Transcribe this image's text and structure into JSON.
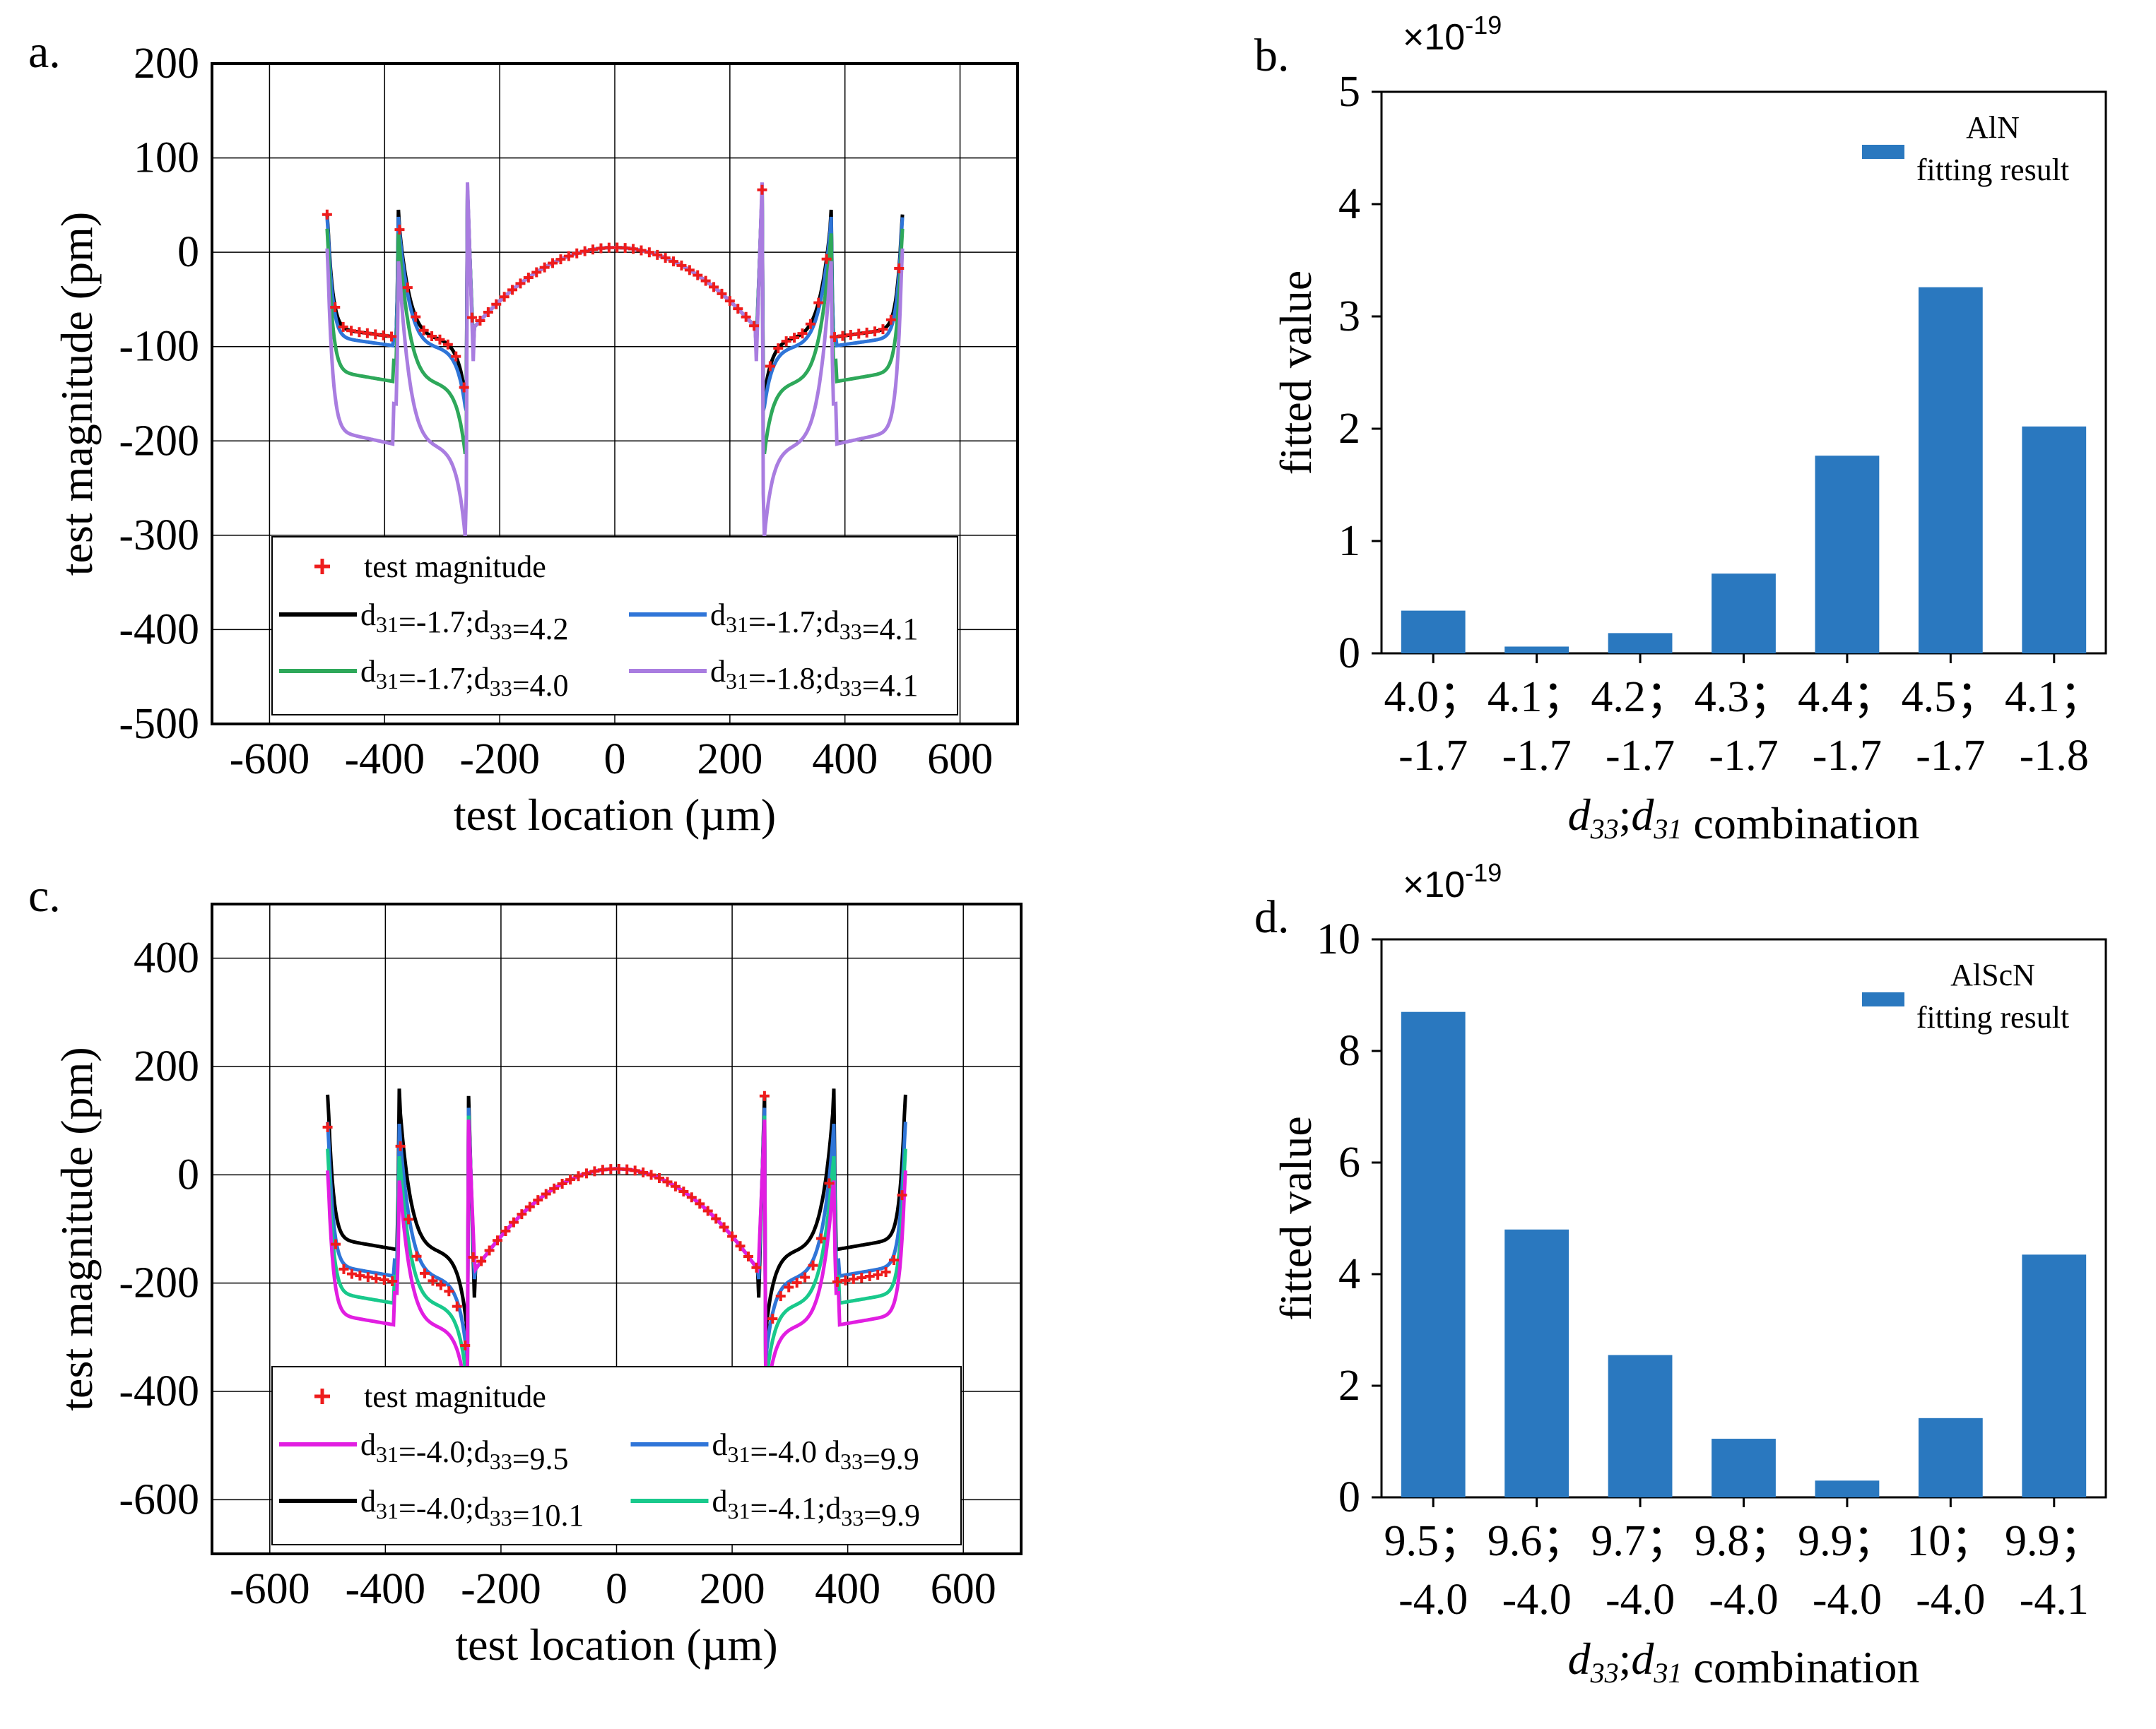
{
  "figure": {
    "panels": {
      "a": {
        "label": "a."
      },
      "b": {
        "label": "b."
      },
      "c": {
        "label": "c."
      },
      "d": {
        "label": "d."
      }
    }
  },
  "chart_data": [
    {
      "id": "a",
      "type": "line",
      "title": "",
      "xlabel": "test location (µm)",
      "ylabel": "test magnitude (pm)",
      "xlim": [
        -700,
        700
      ],
      "ylim": [
        -500,
        200
      ],
      "xticks": [
        -600,
        -400,
        -200,
        0,
        200,
        400,
        600
      ],
      "yticks": [
        200,
        100,
        0,
        -100,
        -200,
        -300,
        -400,
        -500
      ],
      "grid": true,
      "legend_position": "bottom-center",
      "legend": [
        {
          "name": "test magnitude",
          "marker": "+",
          "color": "#ee1c1c"
        },
        {
          "name": "d31=-1.7;d33=4.2",
          "color": "#000000"
        },
        {
          "name": "d31=-1.7;d33=4.1",
          "color": "#2f75d8"
        },
        {
          "name": "d31=-1.7;d33=4.0",
          "color": "#2ea85a"
        },
        {
          "name": "d31=-1.8;d33=4.1",
          "color": "#a97de0"
        }
      ],
      "series": [
        {
          "name": "d31=-1.7;d33=4.2",
          "color": "#000000",
          "offset": 0,
          "scale": 1.0,
          "tipScale": 1.0
        },
        {
          "name": "d31=-1.7;d33=4.1",
          "color": "#2f75d8",
          "offset": -5,
          "scale": 1.05,
          "tipScale": 0.9
        },
        {
          "name": "d31=-1.7;d33=4.0",
          "color": "#2ea85a",
          "offset": -25,
          "scale": 1.25,
          "tipScale": 0.8
        },
        {
          "name": "d31=-1.8;d33=4.1",
          "color": "#a97de0",
          "offset": -60,
          "scale": 1.6,
          "tipScale": 0.7
        }
      ],
      "test_points": {
        "name": "test magnitude",
        "color": "#ee1c1c"
      }
    },
    {
      "id": "b",
      "type": "bar",
      "title": "",
      "multiplier": "×10-19",
      "xlabel": "d33;d31 combination",
      "ylabel": "fitted value",
      "ylim": [
        0,
        5
      ],
      "yticks": [
        0,
        1,
        2,
        3,
        4,
        5
      ],
      "legend_position": "top-right",
      "legend": [
        {
          "name": "AlN",
          "sub": "fitting result",
          "color": "#2a78bf"
        }
      ],
      "categories": [
        [
          "4.0；",
          "-1.7"
        ],
        [
          "4.1；",
          "-1.7"
        ],
        [
          "4.2；",
          "-1.7"
        ],
        [
          "4.3；",
          "-1.7"
        ],
        [
          "4.4；",
          "-1.7"
        ],
        [
          "4.5；",
          "-1.7"
        ],
        [
          "4.1；",
          "-1.8"
        ]
      ],
      "values": [
        0.38,
        0.06,
        0.18,
        0.71,
        1.76,
        3.26,
        2.02
      ],
      "color": "#2a78bf"
    },
    {
      "id": "c",
      "type": "line",
      "title": "",
      "xlabel": "test location (µm)",
      "ylabel": "test magnitude (pm)",
      "xlim": [
        -700,
        700
      ],
      "ylim": [
        -700,
        500
      ],
      "xticks": [
        -600,
        -400,
        -200,
        0,
        200,
        400,
        600
      ],
      "yticks": [
        400,
        200,
        0,
        -200,
        -400,
        -600
      ],
      "grid": true,
      "legend_position": "bottom-center",
      "legend": [
        {
          "name": "test magnitude",
          "marker": "+",
          "color": "#ee1c1c"
        },
        {
          "name": "d31=-4.0;d33=9.5",
          "color": "#e11ee1"
        },
        {
          "name": "d31=-4.0 d33=9.9",
          "color": "#2f75d8"
        },
        {
          "name": "d31=-4.0;d33=10.1",
          "color": "#000000"
        },
        {
          "name": "d31=-4.1;d33=9.9",
          "color": "#19c98c"
        }
      ],
      "series": [
        {
          "name": "d31=-4.0;d33=10.1",
          "color": "#000000",
          "offset": 60,
          "scale": 1.0,
          "tipScale": 1.0
        },
        {
          "name": "d31=-4.0 d33=9.9",
          "color": "#2f75d8",
          "offset": 10,
          "scale": 1.0,
          "tipScale": 0.85
        },
        {
          "name": "d31=-4.1;d33=9.9",
          "color": "#19c98c",
          "offset": -40,
          "scale": 1.0,
          "tipScale": 0.75
        },
        {
          "name": "d31=-4.0;d33=9.5",
          "color": "#e11ee1",
          "offset": -80,
          "scale": 1.0,
          "tipScale": 0.7
        }
      ],
      "test_points": {
        "name": "test magnitude",
        "color": "#ee1c1c"
      }
    },
    {
      "id": "d",
      "type": "bar",
      "title": "",
      "multiplier": "×10-19",
      "xlabel": "d33;d31 combination",
      "ylabel": "fitted value",
      "ylim": [
        0,
        10
      ],
      "yticks": [
        0,
        2,
        4,
        6,
        8,
        10
      ],
      "legend_position": "top-right",
      "legend": [
        {
          "name": "AlScN",
          "sub": "fitting result",
          "color": "#2a78bf"
        }
      ],
      "categories": [
        [
          "9.5；",
          "-4.0"
        ],
        [
          "9.6；",
          "-4.0"
        ],
        [
          "9.7；",
          "-4.0"
        ],
        [
          "9.8；",
          "-4.0"
        ],
        [
          "9.9；",
          "-4.0"
        ],
        [
          "10；",
          "-4.0"
        ],
        [
          "9.9；",
          "-4.1"
        ]
      ],
      "values": [
        8.7,
        4.8,
        2.55,
        1.05,
        0.3,
        1.42,
        4.35
      ],
      "color": "#2a78bf"
    }
  ]
}
